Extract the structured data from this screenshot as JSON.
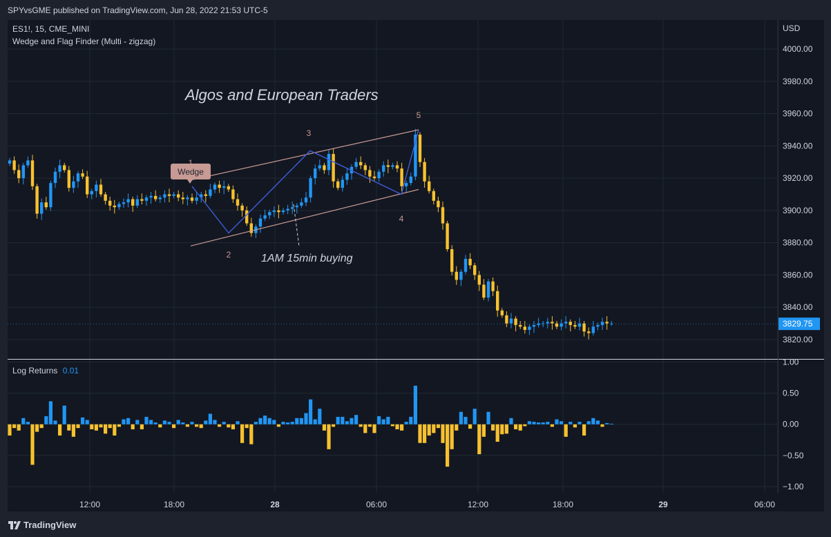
{
  "header": {
    "published": "SPYvsGME published on TradingView.com, Jun 28, 2022 21:53 UTC-5"
  },
  "legend": {
    "symbol": "ES1!, 15, CME_MINI",
    "indicator": "Wedge and Flag Finder (Multi - zigzag)",
    "sub_label": "Log Returns",
    "sub_value": "0.01"
  },
  "footer": {
    "brand": "TradingView"
  },
  "colors": {
    "background": "#131722",
    "grid": "#1f2a30",
    "up": "#2196f3",
    "down": "#f7c12f",
    "axis_text": "#d1d4dc",
    "wedge_line": "#c79a94",
    "zigzag": "#3d5fd9",
    "price_tag": "#2196f3"
  },
  "chart_data": [
    {
      "type": "candlestick",
      "currency": "USD",
      "ylim": [
        3808,
        4018
      ],
      "y_ticks": [
        3820,
        3840,
        3860,
        3880,
        3900,
        3920,
        3940,
        3960,
        3980,
        4000
      ],
      "y_tick_labels": [
        "3820.00",
        "3840.00",
        "3860.00",
        "3880.00",
        "3900.00",
        "3920.00",
        "3940.00",
        "3960.00",
        "3980.00",
        "4000.00"
      ],
      "x_ticks": [
        "12:00",
        "18:00",
        "28",
        "06:00",
        "12:00",
        "18:00",
        "29",
        "06:00"
      ],
      "last_price": "3829.75",
      "grid": true,
      "annotations": {
        "title_text": "Algos and European Traders",
        "buy_note": "1AM 15min buying",
        "pattern_badge": "Wedge",
        "pivot_labels": [
          "1",
          "2",
          "3",
          "4",
          "5"
        ]
      },
      "pivots": [
        {
          "label": "1",
          "price": 3915
        },
        {
          "label": "2",
          "price": 3886
        },
        {
          "label": "3",
          "price": 3937
        },
        {
          "label": "4",
          "price": 3910
        },
        {
          "label": "5",
          "price": 3950
        }
      ],
      "wedge": {
        "upper": [
          3919,
          3950
        ],
        "lower": [
          3878,
          3913
        ]
      },
      "closes": [
        3931,
        3925,
        3920,
        3928,
        3931,
        3915,
        3898,
        3905,
        3902,
        3917,
        3924,
        3928,
        3925,
        3914,
        3918,
        3923,
        3921,
        3910,
        3912,
        3916,
        3910,
        3906,
        3903,
        3902,
        3904,
        3905,
        3907,
        3903,
        3907,
        3906,
        3908,
        3909,
        3907,
        3908,
        3910,
        3909,
        3910,
        3908,
        3907,
        3908,
        3906,
        3908,
        3910,
        3909,
        3913,
        3916,
        3914,
        3915,
        3913,
        3907,
        3903,
        3900,
        3892,
        3886,
        3890,
        3895,
        3897,
        3899,
        3900,
        3899,
        3900,
        3901,
        3902,
        3903,
        3905,
        3908,
        3920,
        3926,
        3928,
        3925,
        3935,
        3918,
        3914,
        3919,
        3923,
        3927,
        3930,
        3928,
        3925,
        3921,
        3920,
        3924,
        3928,
        3927,
        3928,
        3926,
        3915,
        3917,
        3921,
        3947,
        3930,
        3918,
        3912,
        3906,
        3902,
        3892,
        3876,
        3862,
        3857,
        3862,
        3870,
        3866,
        3860,
        3854,
        3846,
        3856,
        3850,
        3838,
        3835,
        3830,
        3833,
        3829,
        3828,
        3826,
        3828,
        3829,
        3830,
        3830,
        3831,
        3830,
        3828,
        3830,
        3831,
        3829,
        3828,
        3830,
        3825,
        3824,
        3828,
        3829,
        3831,
        3830,
        3830
      ],
      "subchart": {
        "title": "Log Returns",
        "ylim": [
          -1.1,
          1.05
        ],
        "y_ticks": [
          1.0,
          0.5,
          0.0,
          -0.5,
          -1.0
        ],
        "y_tick_labels": [
          "1.00",
          "0.50",
          "0.00",
          "−0.50",
          "−1.00"
        ],
        "values": [
          -0.18,
          -0.06,
          -0.1,
          0.1,
          0.04,
          -0.65,
          -0.12,
          -0.06,
          0.13,
          0.37,
          0.06,
          -0.18,
          0.3,
          -0.1,
          -0.2,
          -0.06,
          0.11,
          0.07,
          -0.08,
          -0.1,
          -0.05,
          -0.15,
          -0.06,
          -0.18,
          -0.04,
          0.08,
          0.1,
          -0.08,
          0.07,
          -0.08,
          0.12,
          0.07,
          0.03,
          -0.05,
          0.06,
          0.04,
          -0.06,
          0.07,
          0.03,
          -0.04,
          0.04,
          -0.04,
          -0.06,
          0.06,
          0.17,
          0.07,
          -0.04,
          0.04,
          -0.05,
          -0.08,
          0.05,
          -0.3,
          -0.06,
          -0.32,
          0.04,
          0.1,
          0.14,
          0.1,
          0.07,
          -0.04,
          0.04,
          0.03,
          0.04,
          0.1,
          0.1,
          0.18,
          0.4,
          0.08,
          0.25,
          -0.1,
          -0.4,
          -0.04,
          0.12,
          0.12,
          0.05,
          0.1,
          0.15,
          -0.04,
          -0.14,
          -0.04,
          -0.14,
          0.13,
          0.08,
          0.12,
          -0.03,
          -0.08,
          -0.1,
          0.04,
          0.12,
          0.62,
          -0.3,
          -0.3,
          -0.18,
          -0.14,
          -0.06,
          -0.3,
          -0.68,
          -0.4,
          -0.1,
          0.2,
          0.12,
          -0.07,
          0.25,
          -0.48,
          -0.2,
          0.2,
          -0.1,
          -0.28,
          -0.16,
          -0.15,
          0.1,
          -0.08,
          -0.1,
          -0.03,
          0.05,
          0.04,
          0.03,
          0.03,
          0.04,
          -0.04,
          0.08,
          0.05,
          -0.2,
          0.04,
          -0.05,
          0.04,
          -0.18,
          0.05,
          0.1,
          0.06,
          -0.04,
          0.02,
          0.01
        ]
      }
    }
  ]
}
